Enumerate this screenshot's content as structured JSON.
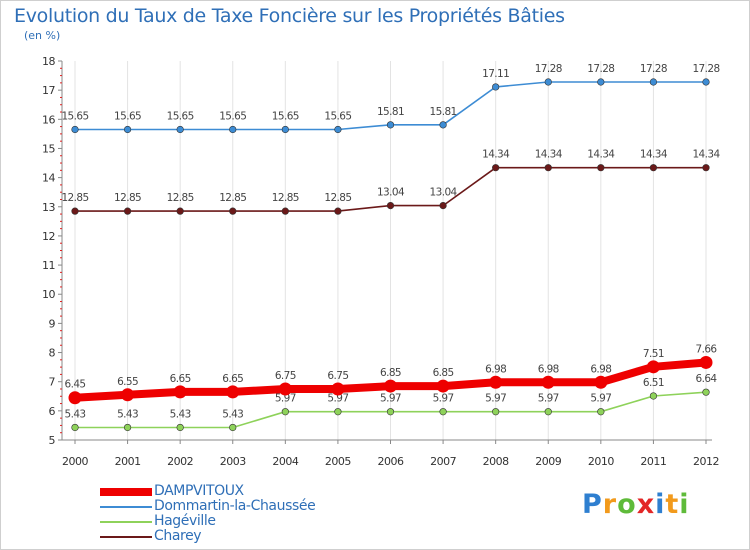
{
  "chart_data": {
    "type": "line",
    "title": "Evolution du Taux de Taxe Foncière sur les Propriétés Bâties",
    "unit_label": "(en %)",
    "x": [
      "2000",
      "2001",
      "2002",
      "2003",
      "2004",
      "2005",
      "2006",
      "2007",
      "2008",
      "2009",
      "2010",
      "2011",
      "2012"
    ],
    "ylim": [
      5,
      18
    ],
    "yticks": [
      "5",
      "6",
      "7",
      "8",
      "9",
      "10",
      "11",
      "12",
      "13",
      "14",
      "15",
      "16",
      "17",
      "18"
    ],
    "grid": "vertical",
    "legend_position": "bottom-left",
    "series": [
      {
        "name": "DAMPVITOUX",
        "color": "#ee0000",
        "emphasis": true,
        "values": [
          6.45,
          6.55,
          6.65,
          6.65,
          6.75,
          6.75,
          6.85,
          6.85,
          6.98,
          6.98,
          6.98,
          7.51,
          7.66
        ],
        "labels": [
          "6.45",
          "6.55",
          "6.65",
          "6.65",
          "6.75",
          "6.75",
          "6.85",
          "6.85",
          "6.98",
          "6.98",
          "6.98",
          "7.51",
          "7.66"
        ]
      },
      {
        "name": "Dommartin-la-Chaussée",
        "color": "#3d8cd4",
        "values": [
          15.65,
          15.65,
          15.65,
          15.65,
          15.65,
          15.65,
          15.81,
          15.81,
          17.11,
          17.28,
          17.28,
          17.28,
          17.28
        ],
        "labels": [
          "15.65",
          "15.65",
          "15.65",
          "15.65",
          "15.65",
          "15.65",
          "15.81",
          "15.81",
          "17.11",
          "17.28",
          "17.28",
          "17.28",
          "17.28"
        ]
      },
      {
        "name": "Hagéville",
        "color": "#8ed25a",
        "values": [
          5.43,
          5.43,
          5.43,
          5.43,
          5.97,
          5.97,
          5.97,
          5.97,
          5.97,
          5.97,
          5.97,
          6.51,
          6.64
        ],
        "labels": [
          "5.43",
          "5.43",
          "5.43",
          "5.43",
          "5.97",
          "5.97",
          "5.97",
          "5.97",
          "5.97",
          "5.97",
          "5.97",
          "6.51",
          "6.64"
        ]
      },
      {
        "name": "Charey",
        "color": "#6b1919",
        "values": [
          12.85,
          12.85,
          12.85,
          12.85,
          12.85,
          12.85,
          13.04,
          13.04,
          14.34,
          14.34,
          14.34,
          14.34,
          14.34
        ],
        "labels": [
          "12.85",
          "12.85",
          "12.85",
          "12.85",
          "12.85",
          "12.85",
          "13.04",
          "13.04",
          "14.34",
          "14.34",
          "14.34",
          "14.34",
          "14.34"
        ]
      }
    ]
  },
  "logo": {
    "text": "Proxiti",
    "letters": [
      {
        "ch": "P",
        "color": "#2e7fd0"
      },
      {
        "ch": "r",
        "color": "#f29a1c"
      },
      {
        "ch": "o",
        "color": "#5fbb3a"
      },
      {
        "ch": "x",
        "color": "#e32626"
      },
      {
        "ch": "i",
        "color": "#2e7fd0"
      },
      {
        "ch": "t",
        "color": "#f29a1c"
      },
      {
        "ch": "i",
        "color": "#5fbb3a"
      }
    ]
  }
}
